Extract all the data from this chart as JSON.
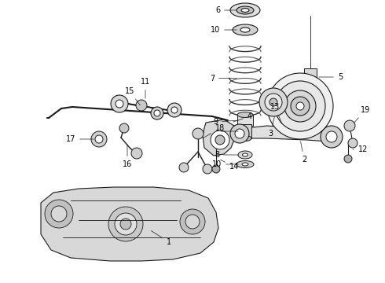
{
  "background": "#ffffff",
  "line_color": "#1a1a1a",
  "label_color": "#000000",
  "fig_width": 4.9,
  "fig_height": 3.6,
  "dpi": 100,
  "label_fontsize": 7,
  "arrow_lw": 0.5
}
